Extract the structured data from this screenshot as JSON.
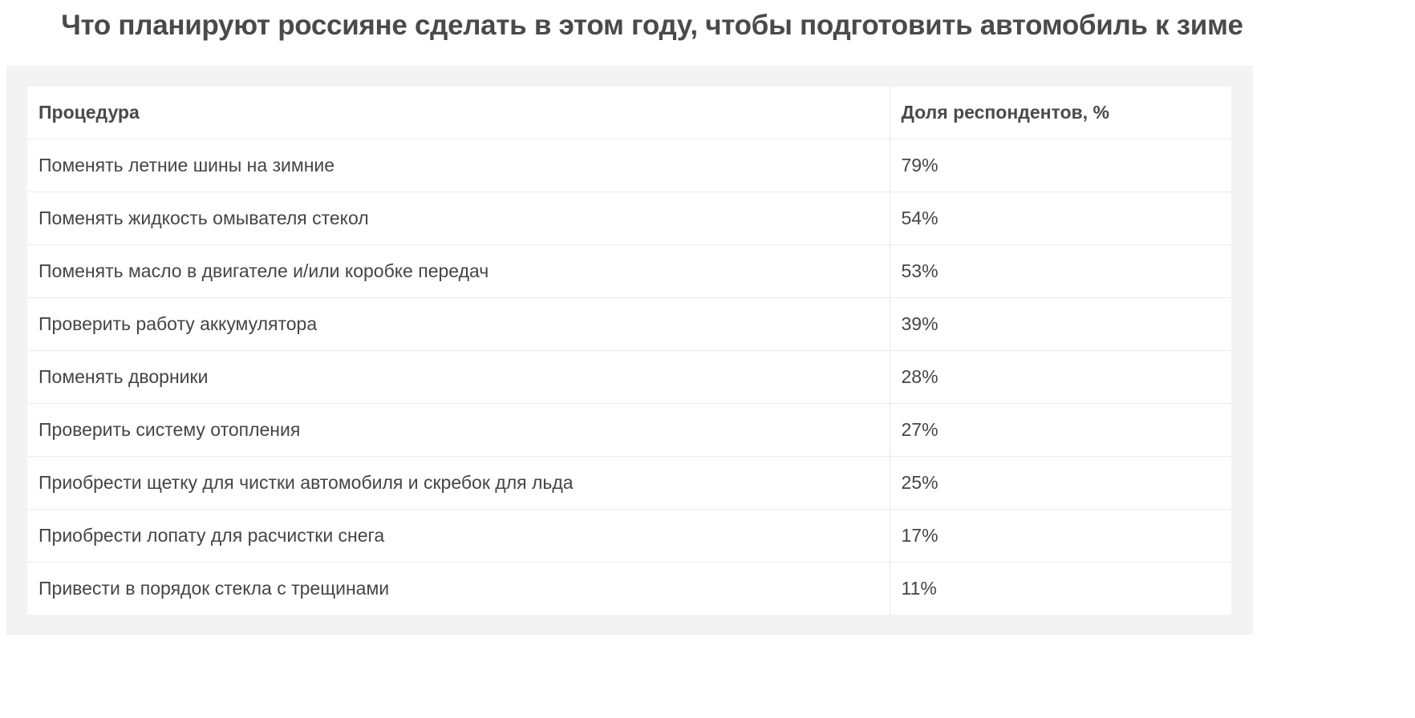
{
  "chart_data": {
    "type": "table",
    "title": "Что планируют россияне сделать в этом году, чтобы подготовить автомобиль к зиме",
    "columns": [
      "Процедура",
      "Доля респондентов, %"
    ],
    "rows": [
      {
        "procedure": "Поменять летние шины на зимние",
        "value": "79%"
      },
      {
        "procedure": "Поменять жидкость омывателя стекол",
        "value": "54%"
      },
      {
        "procedure": "Поменять масло в двигателе и/или коробке передач",
        "value": "53%"
      },
      {
        "procedure": "Проверить работу аккумулятора",
        "value": "39%"
      },
      {
        "procedure": "Поменять дворники",
        "value": "28%"
      },
      {
        "procedure": "Проверить систему отопления",
        "value": "27%"
      },
      {
        "procedure": "Приобрести щетку для чистки автомобиля и скребок для льда",
        "value": "25%"
      },
      {
        "procedure": "Приобрести лопату для расчистки снега",
        "value": "17%"
      },
      {
        "procedure": "Привести в порядок стекла с трещинами",
        "value": "11%"
      }
    ]
  }
}
